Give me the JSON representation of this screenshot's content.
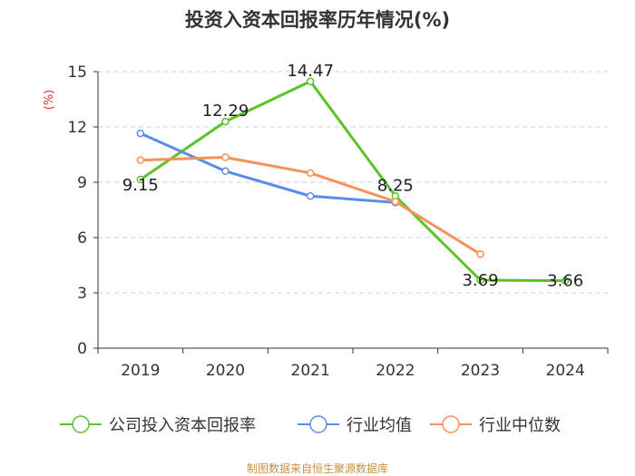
{
  "chart_data": {
    "type": "line",
    "title": "投资入资本回报率历年情况(%)",
    "ylabel": "(%)",
    "xlabel": "",
    "categories": [
      "2019",
      "2020",
      "2021",
      "2022",
      "2023",
      "2024"
    ],
    "ylim": [
      0,
      15
    ],
    "yticks": [
      0,
      3,
      6,
      9,
      12,
      15
    ],
    "grid": "horizontal dashed",
    "legend_position": "bottom",
    "series": [
      {
        "name": "公司投入资本回报率",
        "color": "#5bc227",
        "values": [
          9.15,
          12.29,
          14.47,
          8.25,
          3.69,
          3.66
        ],
        "labels": [
          "9.15",
          "12.29",
          "14.47",
          "8.25",
          "3.69",
          "3.66"
        ]
      },
      {
        "name": "行业均值",
        "color": "#5b8ee6",
        "values": [
          11.65,
          9.6,
          8.25,
          7.9,
          null,
          null
        ]
      },
      {
        "name": "行业中位数",
        "color": "#f5925a",
        "values": [
          10.2,
          10.35,
          9.5,
          7.95,
          5.1,
          null
        ]
      }
    ]
  },
  "footer": "制图数据来自恒生聚源数据库"
}
